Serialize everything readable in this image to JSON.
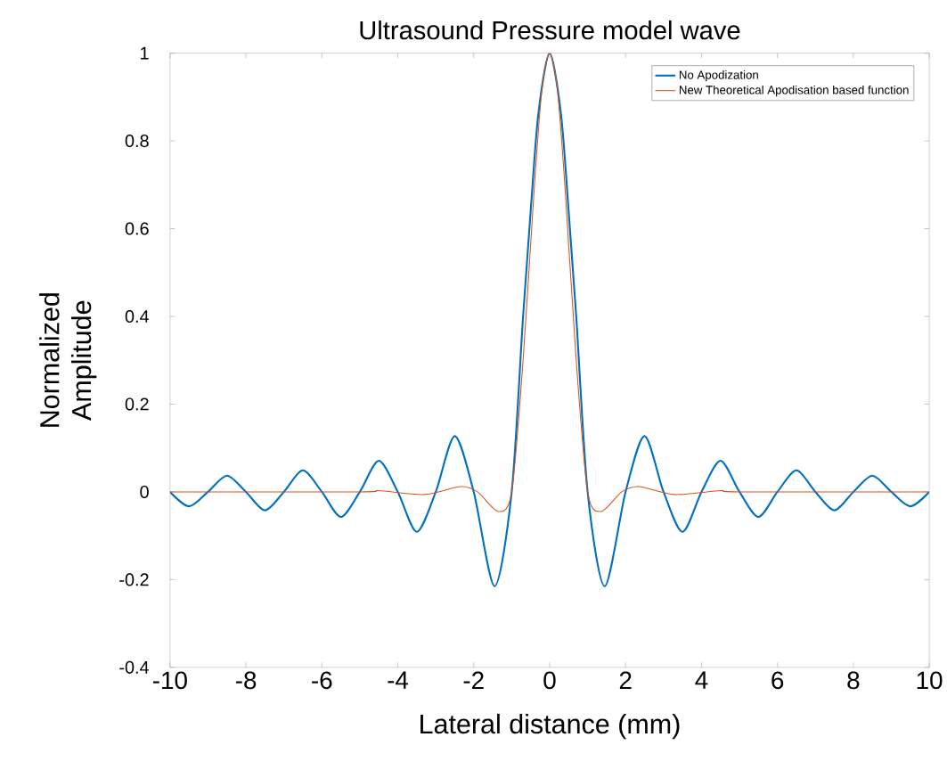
{
  "chart_data": {
    "type": "line",
    "title": "Ultrasound Pressure model wave",
    "xlabel": "Lateral distance (mm)",
    "ylabel": "Normalized Amplitude",
    "xlim": [
      -10,
      10
    ],
    "ylim": [
      -0.4,
      1
    ],
    "xticks": [
      -10,
      -8,
      -6,
      -4,
      -2,
      0,
      2,
      4,
      6,
      8,
      10
    ],
    "yticks": [
      -0.4,
      -0.2,
      0,
      0.2,
      0.4,
      0.6,
      0.8,
      1
    ],
    "grid": false,
    "legend": "top right",
    "series": [
      {
        "name": "No Apodization",
        "color": "#0072bd",
        "x": [
          -10,
          -9.5,
          -9,
          -8.5,
          -8,
          -7.5,
          -7,
          -6.5,
          -6,
          -5.5,
          -5,
          -4.5,
          -4,
          -3.5,
          -3,
          -2.5,
          -2,
          -1.45,
          -1,
          -0.7,
          -0.5,
          -0.3,
          0,
          0.3,
          0.5,
          0.7,
          1,
          1.45,
          2,
          2.5,
          3,
          3.5,
          4,
          4.5,
          5,
          5.5,
          6,
          6.5,
          7,
          7.5,
          8,
          8.5,
          9,
          9.5,
          10
        ],
        "values": [
          0,
          -0.033,
          0,
          0.037,
          0,
          -0.042,
          0,
          0.049,
          0,
          -0.057,
          0,
          0.071,
          0,
          -0.091,
          0,
          0.127,
          0,
          -0.215,
          0,
          0.4,
          0.64,
          0.86,
          1,
          0.86,
          0.64,
          0.4,
          0,
          -0.215,
          0,
          0.127,
          0,
          -0.091,
          0,
          0.071,
          0,
          -0.057,
          0,
          0.049,
          0,
          -0.042,
          0,
          0.037,
          0,
          -0.033,
          0
        ]
      },
      {
        "name": "New Theoretical Apodisation based function",
        "color": "#d95319",
        "x": [
          -10,
          -5,
          -4.5,
          -3.3,
          -2.35,
          -1.9,
          -1.35,
          -1,
          -0.7,
          -0.4,
          -0.2,
          0,
          0.2,
          0.4,
          0.7,
          1,
          1.35,
          1.9,
          2.35,
          3.3,
          4.5,
          5,
          10
        ],
        "values": [
          0,
          0,
          0.003,
          -0.006,
          0.012,
          0,
          -0.045,
          0,
          0.3,
          0.7,
          0.92,
          1,
          0.92,
          0.7,
          0.3,
          0,
          -0.045,
          0,
          0.012,
          -0.006,
          0.003,
          0,
          0
        ]
      }
    ]
  }
}
